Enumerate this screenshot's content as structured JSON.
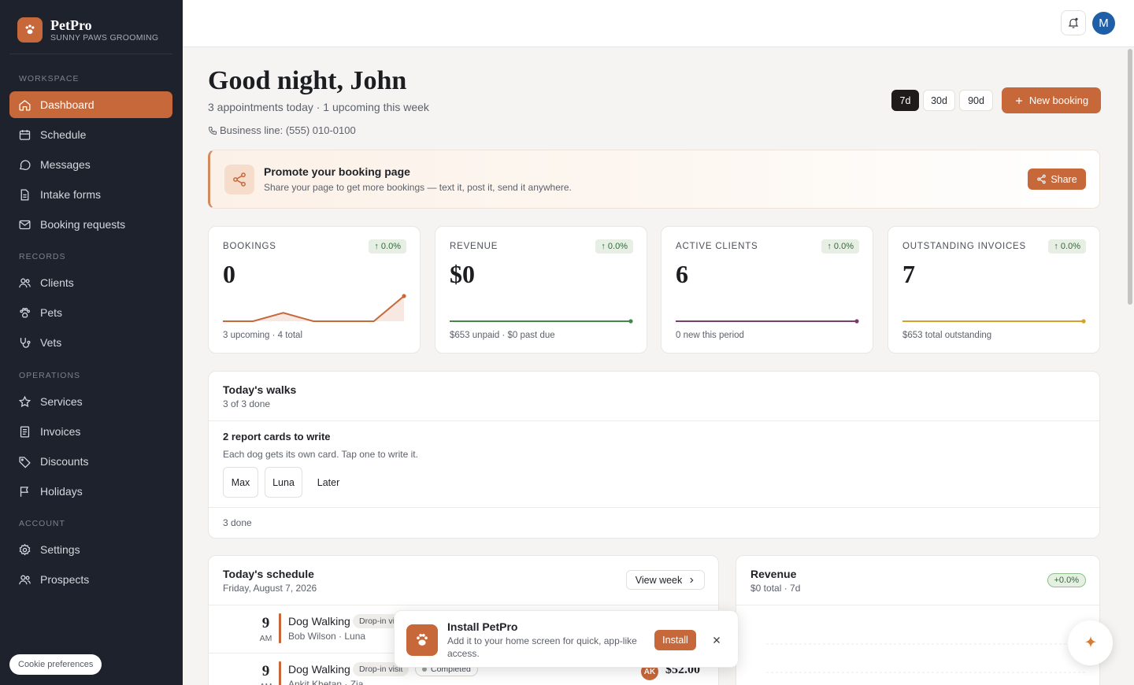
{
  "brand": {
    "name": "PetPro",
    "subtitle": "SUNNY PAWS GROOMING"
  },
  "sidebar": {
    "sections": [
      {
        "label": "WORKSPACE"
      },
      {
        "label": "RECORDS"
      },
      {
        "label": "OPERATIONS"
      },
      {
        "label": "ACCOUNT"
      }
    ],
    "items": [
      {
        "label": "Dashboard",
        "icon": "home-icon"
      },
      {
        "label": "Schedule",
        "icon": "calendar-icon"
      },
      {
        "label": "Messages",
        "icon": "message-icon"
      },
      {
        "label": "Intake forms",
        "icon": "file-icon"
      },
      {
        "label": "Booking requests",
        "icon": "mail-icon"
      },
      {
        "label": "Clients",
        "icon": "users-icon"
      },
      {
        "label": "Pets",
        "icon": "paw-icon"
      },
      {
        "label": "Vets",
        "icon": "stethoscope-icon"
      },
      {
        "label": "Services",
        "icon": "star-icon"
      },
      {
        "label": "Invoices",
        "icon": "receipt-icon"
      },
      {
        "label": "Discounts",
        "icon": "tag-icon"
      },
      {
        "label": "Holidays",
        "icon": "flag-icon"
      },
      {
        "label": "Settings",
        "icon": "gear-icon"
      },
      {
        "label": "Prospects",
        "icon": "users-icon"
      }
    ],
    "cookie_label": "Cookie preferences"
  },
  "topbar": {
    "avatar_initial": "M"
  },
  "header": {
    "greeting": "Good night, John",
    "summary": "3 appointments today · 1 upcoming this week",
    "phone": "Business line: (555) 010-0100",
    "ranges": [
      "7d",
      "30d",
      "90d"
    ],
    "active_range": "7d",
    "new_booking": "New booking"
  },
  "promo": {
    "title": "Promote your booking page",
    "subtitle": "Share your page to get more bookings — text it, post it, send it anywhere.",
    "button": "Share"
  },
  "stats": [
    {
      "label": "BOOKINGS",
      "change": "0.0%",
      "value": "0",
      "footer": "3 upcoming · 4 total",
      "color": "#c7683a",
      "trend": [
        0,
        0,
        3,
        0,
        0,
        0,
        9
      ]
    },
    {
      "label": "REVENUE",
      "change": "0.0%",
      "value": "$0",
      "footer": "$653 unpaid · $0 past due",
      "color": "#3f8a4a",
      "trend": [
        0,
        0,
        0,
        0,
        0,
        0,
        0
      ]
    },
    {
      "label": "ACTIVE CLIENTS",
      "change": "0.0%",
      "value": "6",
      "footer": "0 new this period",
      "color": "#7a3e6e",
      "trend": [
        0,
        0,
        0,
        0,
        0,
        0,
        0
      ]
    },
    {
      "label": "OUTSTANDING INVOICES",
      "change": "0.0%",
      "value": "7",
      "footer": "$653 total outstanding",
      "color": "#d4a129",
      "trend": [
        0,
        0,
        0,
        0,
        0,
        0,
        0
      ]
    }
  ],
  "walks": {
    "title": "Today's walks",
    "subtitle": "3 of 3 done",
    "report_title": "2 report cards to write",
    "report_sub": "Each dog gets its own card. Tap one to write it.",
    "dogs": [
      "Max",
      "Luna"
    ],
    "later": "Later",
    "done": "3 done"
  },
  "schedule": {
    "title": "Today's schedule",
    "date": "Friday, August 7, 2026",
    "view_week": "View week",
    "appointments": [
      {
        "hour": "9",
        "ampm": "AM",
        "service": "Dog Walking",
        "type": "Drop-in visit",
        "client": "Bob Wilson",
        "pet": "Luna",
        "status": "",
        "initials": "",
        "price": ""
      },
      {
        "hour": "9",
        "ampm": "AM",
        "service": "Dog Walking",
        "type": "Drop-in visit",
        "client": "Ankit Khetan",
        "pet": "Zia",
        "status": "Completed",
        "initials": "AK",
        "price": "$52.00"
      }
    ]
  },
  "revenue": {
    "title": "Revenue",
    "subtitle": "$0 total · 7d",
    "badge": "+0.0%"
  },
  "install": {
    "title": "Install PetPro",
    "subtitle": "Add it to your home screen for quick, app-like access.",
    "button": "Install"
  }
}
